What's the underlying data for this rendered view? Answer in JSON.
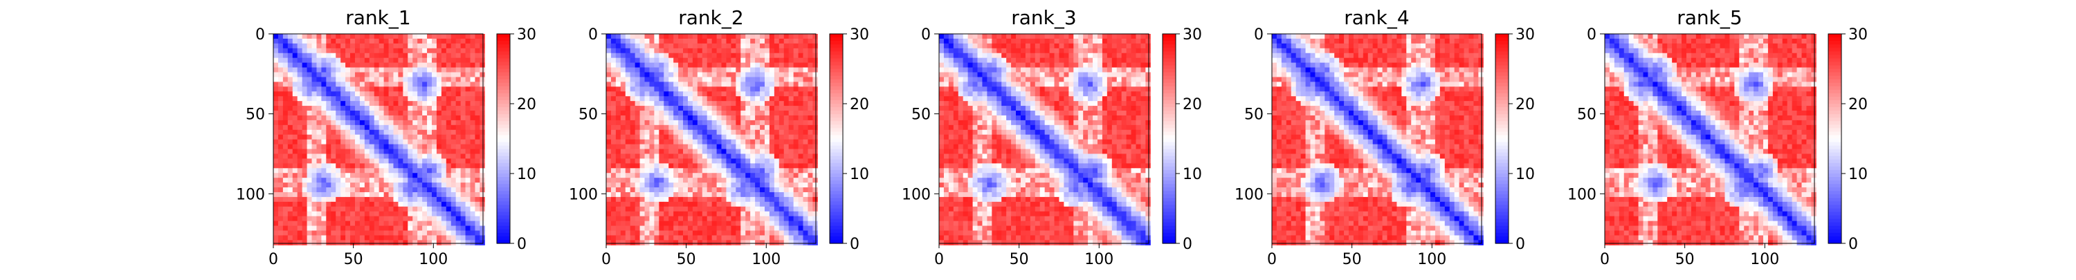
{
  "figure": {
    "background": "#ffffff"
  },
  "chart_data": [
    {
      "type": "heatmap",
      "title": "rank_1",
      "size": 131,
      "xlim": [
        0,
        131
      ],
      "ylim": [
        131,
        0
      ],
      "xticks": [
        0,
        50,
        100
      ],
      "yticks": [
        0,
        50,
        100
      ],
      "colorbar": {
        "vmin": 0,
        "vmax": 30,
        "ticks": [
          0,
          10,
          20,
          30
        ],
        "colormap": "bwr"
      },
      "values": {
        "diagonal_band": 0,
        "contact_pairs": [
          [
            22,
            30
          ],
          [
            30,
            92
          ],
          [
            85,
            95
          ]
        ],
        "contact_value": 5,
        "background_value": 28
      }
    },
    {
      "type": "heatmap",
      "title": "rank_2",
      "size": 131,
      "xlim": [
        0,
        131
      ],
      "ylim": [
        131,
        0
      ],
      "xticks": [
        0,
        50,
        100
      ],
      "yticks": [
        0,
        50,
        100
      ],
      "colorbar": {
        "vmin": 0,
        "vmax": 30,
        "ticks": [
          0,
          10,
          20,
          30
        ],
        "colormap": "bwr"
      },
      "values": {
        "diagonal_band": 0,
        "contact_pairs": [
          [
            22,
            30
          ],
          [
            30,
            92
          ],
          [
            85,
            95
          ]
        ],
        "contact_value": 5,
        "background_value": 28
      }
    },
    {
      "type": "heatmap",
      "title": "rank_3",
      "size": 131,
      "xlim": [
        0,
        131
      ],
      "ylim": [
        131,
        0
      ],
      "xticks": [
        0,
        50,
        100
      ],
      "yticks": [
        0,
        50,
        100
      ],
      "colorbar": {
        "vmin": 0,
        "vmax": 30,
        "ticks": [
          0,
          10,
          20,
          30
        ],
        "colormap": "bwr"
      },
      "values": {
        "diagonal_band": 0,
        "contact_pairs": [
          [
            22,
            30
          ],
          [
            30,
            92
          ],
          [
            85,
            95
          ]
        ],
        "contact_value": 5,
        "background_value": 28
      }
    },
    {
      "type": "heatmap",
      "title": "rank_4",
      "size": 131,
      "xlim": [
        0,
        131
      ],
      "ylim": [
        131,
        0
      ],
      "xticks": [
        0,
        50,
        100
      ],
      "yticks": [
        0,
        50,
        100
      ],
      "colorbar": {
        "vmin": 0,
        "vmax": 30,
        "ticks": [
          0,
          10,
          20,
          30
        ],
        "colormap": "bwr"
      },
      "values": {
        "diagonal_band": 0,
        "contact_pairs": [
          [
            22,
            30
          ],
          [
            30,
            92
          ],
          [
            85,
            95
          ]
        ],
        "contact_value": 5,
        "background_value": 28
      }
    },
    {
      "type": "heatmap",
      "title": "rank_5",
      "size": 131,
      "xlim": [
        0,
        131
      ],
      "ylim": [
        131,
        0
      ],
      "xticks": [
        0,
        50,
        100
      ],
      "yticks": [
        0,
        50,
        100
      ],
      "colorbar": {
        "vmin": 0,
        "vmax": 30,
        "ticks": [
          0,
          10,
          20,
          30
        ],
        "colormap": "bwr"
      },
      "values": {
        "diagonal_band": 0,
        "contact_pairs": [
          [
            22,
            30
          ],
          [
            30,
            92
          ],
          [
            85,
            95
          ]
        ],
        "contact_value": 5,
        "background_value": 28
      }
    }
  ]
}
